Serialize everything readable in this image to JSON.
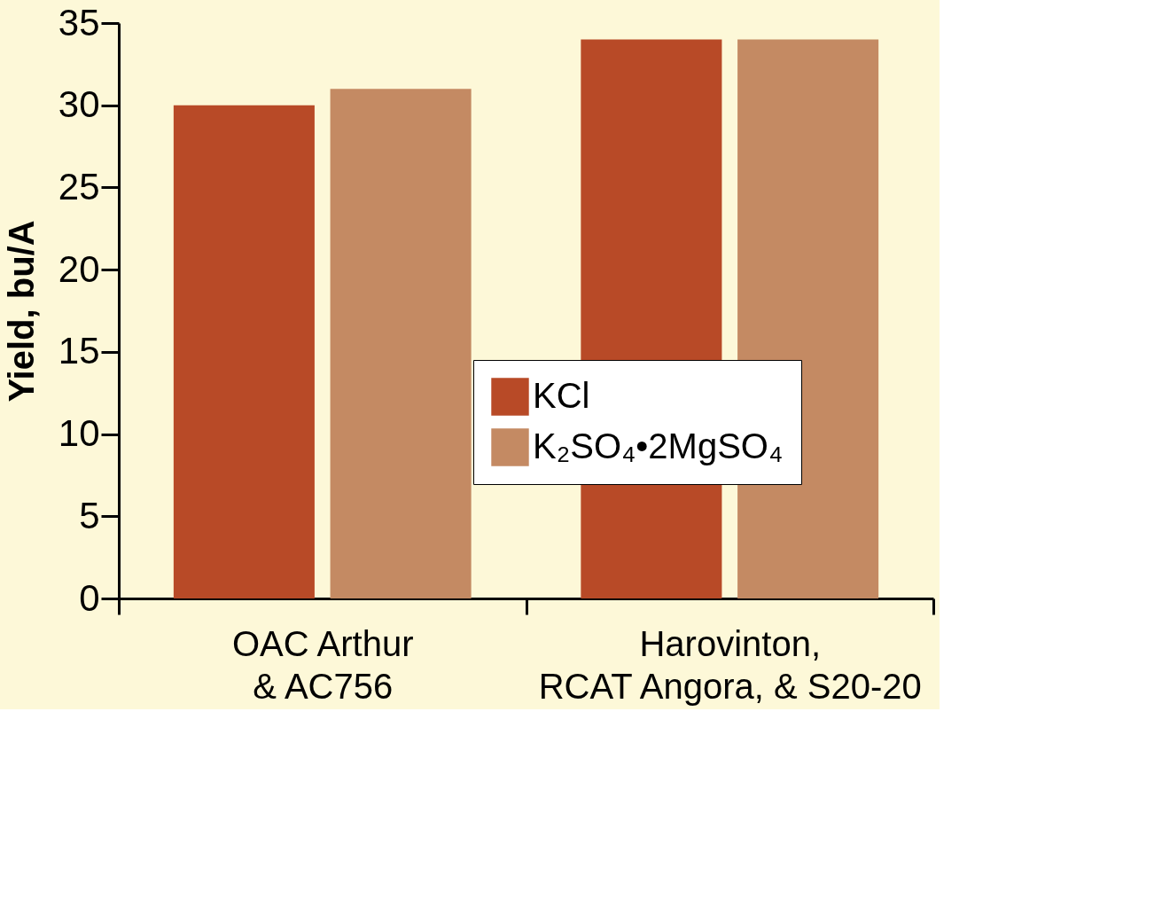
{
  "chart_data": {
    "type": "bar",
    "ylabel": "Yield, bu/A",
    "categories": [
      "OAC Arthur\n& AC756",
      "Harovinton,\nRCAT Angora, & S20-20"
    ],
    "series": [
      {
        "name": "KCl",
        "color": "#b84a27",
        "values": [
          30,
          34
        ]
      },
      {
        "name": "K₂SO₄•2MgSO₄",
        "color": "#c48a63",
        "values": [
          31,
          34
        ]
      }
    ],
    "ylim": [
      0,
      35
    ],
    "yticks": [
      0,
      5,
      10,
      15,
      20,
      25,
      30,
      35
    ],
    "grid": false,
    "legend": "center"
  }
}
